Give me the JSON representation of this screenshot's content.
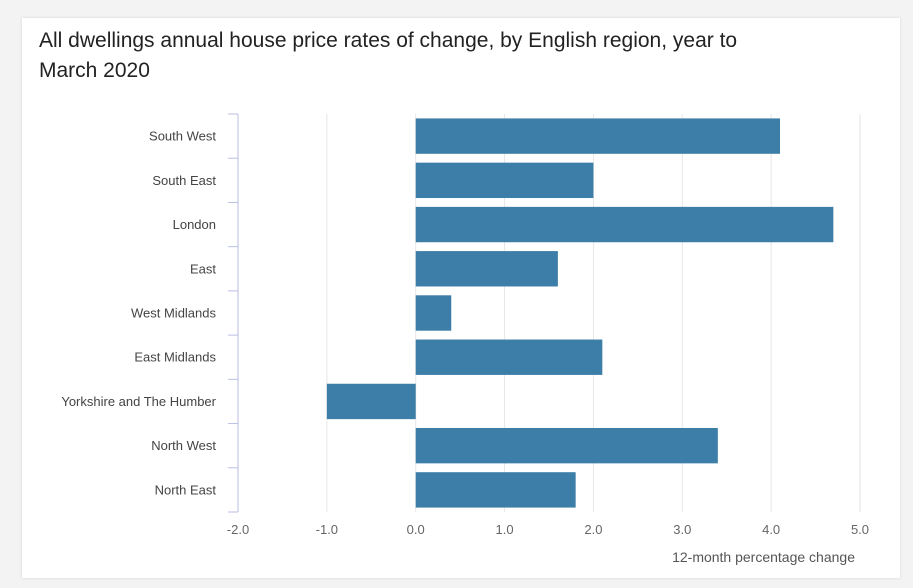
{
  "chart_data": {
    "type": "bar",
    "orientation": "horizontal",
    "title": "All dwellings annual house price rates of change, by English region, year to March 2020",
    "xlabel": "12-month percentage change",
    "ylabel": "",
    "categories": [
      "South West",
      "South East",
      "London",
      "East",
      "West Midlands",
      "East Midlands",
      "Yorkshire and The Humber",
      "North West",
      "North East"
    ],
    "values": [
      4.1,
      2.0,
      4.7,
      1.6,
      0.4,
      2.1,
      -1.0,
      3.4,
      1.8
    ],
    "xlim": [
      -2.0,
      5.0
    ],
    "xticks": [
      "-2.0",
      "-1.0",
      "0.0",
      "1.0",
      "2.0",
      "3.0",
      "4.0",
      "5.0"
    ],
    "grid": "vertical",
    "bar_color": "#3c7ea7"
  }
}
